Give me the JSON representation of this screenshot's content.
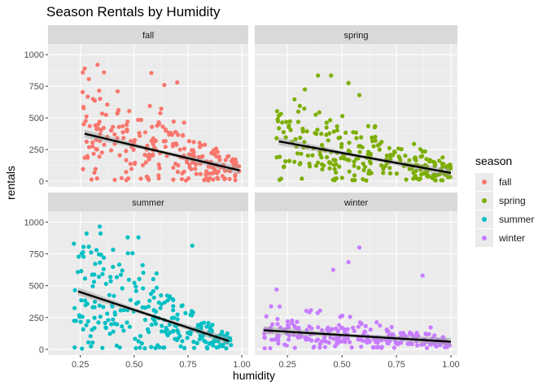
{
  "chart_data": {
    "type": "scatter",
    "title": "Season Rentals by Humidity",
    "xlabel": "humidity",
    "ylabel": "rentals",
    "xlim": [
      0.1,
      1.03
    ],
    "ylim": [
      -45,
      1085
    ],
    "x_ticks": [
      0.25,
      0.5,
      0.75,
      1.0
    ],
    "x_tick_labels": [
      "0.25",
      "0.50",
      "0.75",
      "1.00"
    ],
    "y_ticks": [
      0,
      250,
      500,
      750,
      1000
    ],
    "y_tick_labels": [
      "0",
      "250",
      "500",
      "750",
      "1000"
    ],
    "grid": true,
    "legend": {
      "title": "season",
      "position": "right",
      "entries": [
        "fall",
        "spring",
        "summer",
        "winter"
      ]
    },
    "facets": [
      {
        "name": "fall",
        "color": "#F8766D",
        "trend": {
          "x": [
            0.27,
            0.99
          ],
          "y": [
            375,
            85
          ]
        },
        "x_range": [
          0.26,
          1.0
        ],
        "points": 260,
        "max_y": 920,
        "highlights": [
          [
            0.27,
            890
          ],
          [
            0.33,
            920
          ],
          [
            0.36,
            860
          ],
          [
            0.58,
            855
          ],
          [
            0.7,
            780
          ],
          [
            0.64,
            760
          ]
        ]
      },
      {
        "name": "spring",
        "color": "#7CAE00",
        "trend": {
          "x": [
            0.21,
            1.0
          ],
          "y": [
            315,
            65
          ]
        },
        "x_range": [
          0.2,
          1.0
        ],
        "points": 260,
        "max_y": 840,
        "highlights": [
          [
            0.39,
            835
          ],
          [
            0.45,
            835
          ],
          [
            0.53,
            775
          ],
          [
            0.33,
            725
          ],
          [
            0.58,
            680
          ]
        ]
      },
      {
        "name": "summer",
        "color": "#00BFC4",
        "trend": {
          "x": [
            0.24,
            0.94
          ],
          "y": [
            455,
            65
          ]
        },
        "x_range": [
          0.22,
          0.95
        ],
        "points": 260,
        "max_y": 970,
        "highlights": [
          [
            0.34,
            965
          ],
          [
            0.22,
            830
          ],
          [
            0.47,
            880
          ],
          [
            0.52,
            880
          ],
          [
            0.77,
            815
          ]
        ]
      },
      {
        "name": "winter",
        "color": "#C77CFF",
        "trend": {
          "x": [
            0.14,
            1.0
          ],
          "y": [
            150,
            60
          ]
        },
        "x_range": [
          0.14,
          1.0
        ],
        "points": 260,
        "max_y": 800,
        "highlights": [
          [
            0.58,
            800
          ],
          [
            0.53,
            685
          ],
          [
            0.46,
            625
          ],
          [
            0.87,
            580
          ],
          [
            0.2,
            470
          ]
        ]
      }
    ]
  }
}
